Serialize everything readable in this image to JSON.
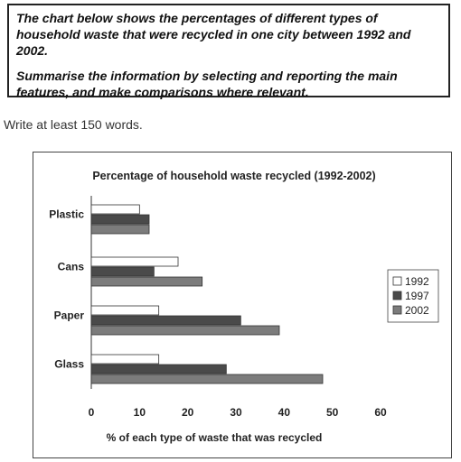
{
  "task": {
    "line1": "The chart below shows the percentages of different types of household waste that were recycled in one city between 1992 and 2002.",
    "line2": "Summarise the information by selecting and reporting the main features, and make comparisons where relevant."
  },
  "word_requirement": "Write at least 150 words.",
  "chart_data": {
    "type": "bar",
    "orientation": "horizontal",
    "title": "Percentage of household waste recycled (1992-2002)",
    "xlabel": "% of each type of waste that was recycled",
    "ylabel": "",
    "categories": [
      "Plastic",
      "Cans",
      "Paper",
      "Glass"
    ],
    "series": [
      {
        "name": "1992",
        "values": [
          10,
          18,
          14,
          14
        ],
        "fill": "#ffffff"
      },
      {
        "name": "1997",
        "values": [
          12,
          13,
          31,
          28
        ],
        "fill": "#4a4a4a"
      },
      {
        "name": "2002",
        "values": [
          12,
          23,
          39,
          48
        ],
        "fill": "#7c7c7c"
      }
    ],
    "xlim": [
      0,
      60
    ],
    "xticks": [
      "0",
      "10",
      "20",
      "30",
      "40",
      "50",
      "60"
    ],
    "grid": false,
    "legend": "right"
  }
}
